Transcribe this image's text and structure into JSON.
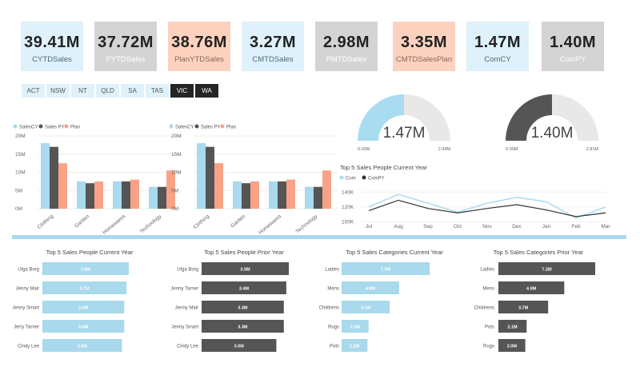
{
  "colors": {
    "blue": "#a8d9ec",
    "dark": "#555555",
    "peach": "#f9a285",
    "track": "#e8e8e8",
    "gaugeBlue": "#a9dcf0"
  },
  "kpis": [
    {
      "value": "39.41M",
      "label": "CYTDSales",
      "style": "blue"
    },
    {
      "value": "37.72M",
      "label": "PYTDSales",
      "style": "gray"
    },
    {
      "value": "38.76M",
      "label": "PlanYTDSales",
      "style": "peach"
    },
    {
      "value": "3.27M",
      "label": "CMTDSales",
      "style": "blue"
    },
    {
      "value": "2.98M",
      "label": "PMTDSales",
      "style": "gray"
    },
    {
      "value": "3.35M",
      "label": "CMTDSalesPlan",
      "style": "peach"
    },
    {
      "value": "1.47M",
      "label": "ComCY",
      "style": "blue"
    },
    {
      "value": "1.40M",
      "label": "ComPY",
      "style": "gray"
    }
  ],
  "slicer": [
    {
      "label": "ACT",
      "selected": false
    },
    {
      "label": "NSW",
      "selected": false
    },
    {
      "label": "NT",
      "selected": false
    },
    {
      "label": "QLD",
      "selected": false
    },
    {
      "label": "SA",
      "selected": false
    },
    {
      "label": "TAS",
      "selected": false
    },
    {
      "label": "VIC",
      "selected": true
    },
    {
      "label": "WA",
      "selected": true
    }
  ],
  "gauges": [
    {
      "value": "1.47M",
      "min": "0.00M",
      "max": "2.94M",
      "fraction": 0.5,
      "color": "gaugeBlue"
    },
    {
      "value": "1.40M",
      "min": "0.00M",
      "max": "2.81M",
      "fraction": 0.5,
      "color": "dark"
    }
  ],
  "chart_data": [
    {
      "type": "bar",
      "title": "",
      "legend": [
        "SalesCY",
        "Sales PY",
        "Plan"
      ],
      "categories": [
        "Clothing",
        "Garden",
        "Homewares",
        "Technology"
      ],
      "yticks": [
        "20M",
        "15M",
        "10M",
        "5M",
        "0M"
      ],
      "ylim": [
        0,
        20
      ],
      "series": [
        {
          "name": "SalesCY",
          "values": [
            18,
            7.5,
            7.5,
            6
          ]
        },
        {
          "name": "Sales PY",
          "values": [
            17,
            7,
            7.5,
            6
          ]
        },
        {
          "name": "Plan",
          "values": [
            12.5,
            7.5,
            8,
            10.5
          ]
        }
      ]
    },
    {
      "type": "bar",
      "title": "",
      "legend": [
        "SalesCY",
        "Sales PY",
        "Plan"
      ],
      "categories": [
        "Clothing",
        "Garden",
        "Homewares",
        "Technology"
      ],
      "yticks": [
        "20M",
        "15M",
        "10M",
        "5M",
        "0M"
      ],
      "ylim": [
        0,
        20
      ],
      "series": [
        {
          "name": "SalesCY",
          "values": [
            18,
            7.5,
            7.5,
            6
          ]
        },
        {
          "name": "Sales PY",
          "values": [
            17,
            7,
            7.5,
            6
          ]
        },
        {
          "name": "Plan",
          "values": [
            12.5,
            7.5,
            8,
            10.5
          ]
        }
      ]
    },
    {
      "type": "line",
      "title": "Top 5 Sales People Current Year",
      "legend": [
        "Com",
        "ComPY"
      ],
      "categories": [
        "Jul",
        "Aug",
        "Sep",
        "Oct",
        "Nov",
        "Dec",
        "Jan",
        "Feb",
        "Mar"
      ],
      "yticks": [
        "140K",
        "120K",
        "100K"
      ],
      "ylim": [
        95,
        150
      ],
      "series": [
        {
          "name": "Com",
          "values": [
            120,
            137,
            125,
            113,
            125,
            133,
            127,
            105,
            120
          ]
        },
        {
          "name": "ComPY",
          "values": [
            115,
            129,
            118,
            112,
            118,
            123,
            116,
            107,
            112
          ]
        }
      ]
    },
    {
      "type": "bar",
      "title": "Top 5 Sales People Current Year",
      "orientation": "horizontal",
      "categories": [
        "Ulga Borg",
        "Jenny Mair",
        "Jenny Smart",
        "Jerry Tarner",
        "Cindy Lee"
      ],
      "values": [
        3.8,
        3.7,
        3.6,
        3.6,
        3.5
      ],
      "labels": [
        "3.8M",
        "3.7M",
        "3.6M",
        "3.6M",
        "3.5M"
      ],
      "color": "blue",
      "xmax": 3.8
    },
    {
      "type": "bar",
      "title": "Top 5 Sales People Prior Year",
      "orientation": "horizontal",
      "categories": [
        "Ulga Borg",
        "Jenny Tarner",
        "Jenny Mair",
        "Jenny Smart",
        "Cindy Lee"
      ],
      "values": [
        3.5,
        3.4,
        3.3,
        3.3,
        3.0
      ],
      "labels": [
        "3.5M",
        "3.4M",
        "3.3M",
        "3.3M",
        "3.0M"
      ],
      "color": "dark",
      "xmax": 3.5
    },
    {
      "type": "bar",
      "title": "Top 5 Sales Categories Current Year",
      "orientation": "horizontal",
      "categories": [
        "Ladies",
        "Mens",
        "Childrens",
        "Rugs",
        "Pots"
      ],
      "values": [
        7.5,
        4.9,
        4.1,
        2.3,
        2.2
      ],
      "labels": [
        "7.5M",
        "4.9M",
        "4.1M",
        "2.3M",
        "2.2M"
      ],
      "color": "blue",
      "xmax": 7.5
    },
    {
      "type": "bar",
      "title": "Top 5 Sales Categories Prior Year",
      "orientation": "horizontal",
      "categories": [
        "Ladies",
        "Mens",
        "Childrens",
        "Pots",
        "Rugs"
      ],
      "values": [
        7.2,
        4.9,
        3.7,
        2.1,
        2.0
      ],
      "labels": [
        "7.2M",
        "4.9M",
        "3.7M",
        "2.1M",
        "2.0M"
      ],
      "color": "dark",
      "xmax": 7.2
    }
  ]
}
